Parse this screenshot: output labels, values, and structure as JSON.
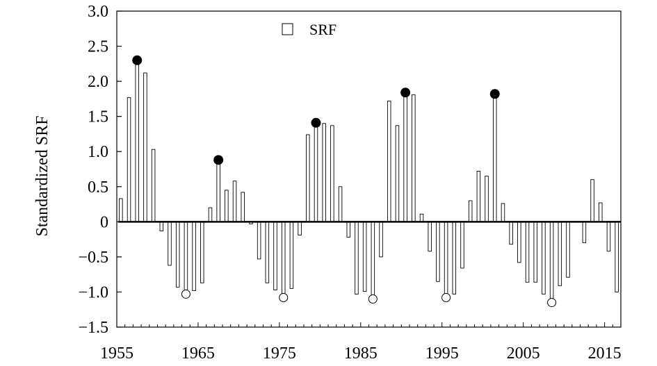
{
  "chart_data": {
    "type": "bar",
    "title": "",
    "xlabel": "",
    "ylabel": "Standardized SRF",
    "xlim": [
      1955,
      2017
    ],
    "ylim": [
      -1.5,
      3.0
    ],
    "xticks": [
      1955,
      1965,
      1975,
      1985,
      1995,
      2005,
      2015
    ],
    "yticks": [
      3.0,
      2.5,
      2.0,
      1.5,
      1.0,
      0.5,
      0,
      -0.5,
      -1.0,
      -1.5
    ],
    "ytick_labels": [
      "3.0",
      "2.5",
      "2.0",
      "1.5",
      "1.0",
      "0.5",
      "0",
      "−0.5",
      "−1.0",
      "−1.5"
    ],
    "grid": false,
    "legend": {
      "entries": [
        "SRF"
      ],
      "placement": "top-center"
    },
    "series": [
      {
        "name": "SRF",
        "x": [
          1955,
          1956,
          1957,
          1958,
          1959,
          1960,
          1961,
          1962,
          1963,
          1964,
          1965,
          1966,
          1967,
          1968,
          1969,
          1970,
          1971,
          1972,
          1973,
          1974,
          1975,
          1976,
          1977,
          1978,
          1979,
          1980,
          1981,
          1982,
          1983,
          1984,
          1985,
          1986,
          1987,
          1988,
          1989,
          1990,
          1991,
          1992,
          1993,
          1994,
          1995,
          1996,
          1997,
          1998,
          1999,
          2000,
          2001,
          2002,
          2003,
          2004,
          2005,
          2006,
          2007,
          2008,
          2009,
          2010,
          2011,
          2012,
          2013,
          2014,
          2015,
          2016
        ],
        "values": [
          0.33,
          1.77,
          2.3,
          2.12,
          1.03,
          -0.13,
          -0.62,
          -0.93,
          -1.01,
          -0.98,
          -0.87,
          0.2,
          0.88,
          0.45,
          0.58,
          0.42,
          -0.03,
          -0.53,
          -0.87,
          -0.97,
          -1.06,
          -0.95,
          -0.19,
          1.24,
          1.41,
          1.4,
          1.37,
          0.5,
          -0.22,
          -1.03,
          -0.99,
          -1.08,
          -0.5,
          1.72,
          1.37,
          1.84,
          1.81,
          0.11,
          -0.42,
          -0.85,
          -1.06,
          -1.03,
          -0.66,
          0.3,
          0.72,
          0.65,
          1.82,
          0.26,
          -0.32,
          -0.58,
          -0.86,
          -0.86,
          -1.03,
          -1.13,
          -0.91,
          -0.79,
          0.0,
          -0.3,
          0.6,
          0.27,
          -0.42,
          -1.0
        ]
      }
    ],
    "peaks_filled": {
      "x": [
        1957,
        1967,
        1979,
        1990,
        2001
      ],
      "values": [
        2.3,
        0.88,
        1.41,
        1.84,
        1.82
      ]
    },
    "troughs_open": {
      "x": [
        1963,
        1975,
        1986,
        1995,
        2008
      ],
      "values": [
        -1.01,
        -1.06,
        -1.08,
        -1.06,
        -1.13
      ]
    }
  }
}
